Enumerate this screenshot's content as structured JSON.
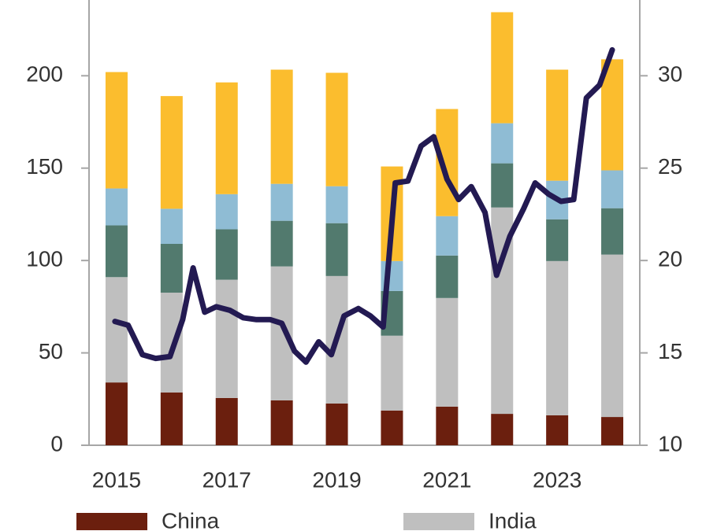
{
  "chart_data": {
    "type": "bar",
    "categories": [
      "2015",
      null,
      "2017",
      null,
      "2019",
      null,
      "2021",
      null,
      "2023",
      null
    ],
    "series": [
      {
        "name": "China",
        "color": "#6b1f0e",
        "values": [
          34,
          28.6,
          25.6,
          24.3,
          22.6,
          18.8,
          20.9,
          17,
          16.2,
          15.3
        ]
      },
      {
        "name": "India",
        "color": "#bfbfbf",
        "values": [
          57,
          54,
          64,
          72.5,
          69,
          40.5,
          58.8,
          111.7,
          83.5,
          87.9
        ]
      },
      {
        "color": "#527a6e",
        "values": [
          28,
          26.4,
          27.3,
          24.7,
          28.6,
          24.2,
          23,
          23.9,
          22.6,
          25.1
        ]
      },
      {
        "color": "#8fbcd4",
        "values": [
          20,
          19,
          19,
          20,
          20,
          16.2,
          21.3,
          21.7,
          20.9,
          20.5
        ]
      },
      {
        "color": "#fbbd2e",
        "values": [
          63,
          61,
          60.5,
          61.8,
          61.4,
          51.2,
          58,
          60.1,
          60.1,
          60.1
        ]
      }
    ],
    "line": {
      "type": "line",
      "axis": "y2",
      "color": "#231a52",
      "x": [
        2014.97,
        2015.21,
        2015.47,
        2015.71,
        2015.97,
        2016.2,
        2016.39,
        2016.6,
        2016.81,
        2017.06,
        2017.3,
        2017.54,
        2017.79,
        2018,
        2018.23,
        2018.44,
        2018.67,
        2018.9,
        2019.13,
        2019.39,
        2019.61,
        2019.84,
        2020.06,
        2020.29,
        2020.53,
        2020.76,
        2021,
        2021.21,
        2021.44,
        2021.69,
        2021.9,
        2022.14,
        2022.39,
        2022.6,
        2022.84,
        2023.07,
        2023.3,
        2023.53,
        2023.77,
        2024
      ],
      "values": [
        16.7,
        16.5,
        14.9,
        14.7,
        14.8,
        16.8,
        19.6,
        17.2,
        17.5,
        17.3,
        16.9,
        16.8,
        16.8,
        16.6,
        15.1,
        14.5,
        15.6,
        14.9,
        17.0,
        17.4,
        17.0,
        16.4,
        24.2,
        24.3,
        26.2,
        26.7,
        24.4,
        23.3,
        24.0,
        22.6,
        19.2,
        21.3,
        22.8,
        24.2,
        23.6,
        23.2,
        23.3,
        28.8,
        29.5,
        31.4
      ]
    },
    "xlim": [
      2014.5,
      2024.5
    ],
    "ylim": [
      0,
      241
    ],
    "yticks": [
      0,
      50,
      100,
      150,
      200
    ],
    "y2lim": [
      10,
      34.1
    ],
    "y2ticks": [
      10,
      15,
      20,
      25,
      30
    ],
    "legend": "bottom"
  }
}
